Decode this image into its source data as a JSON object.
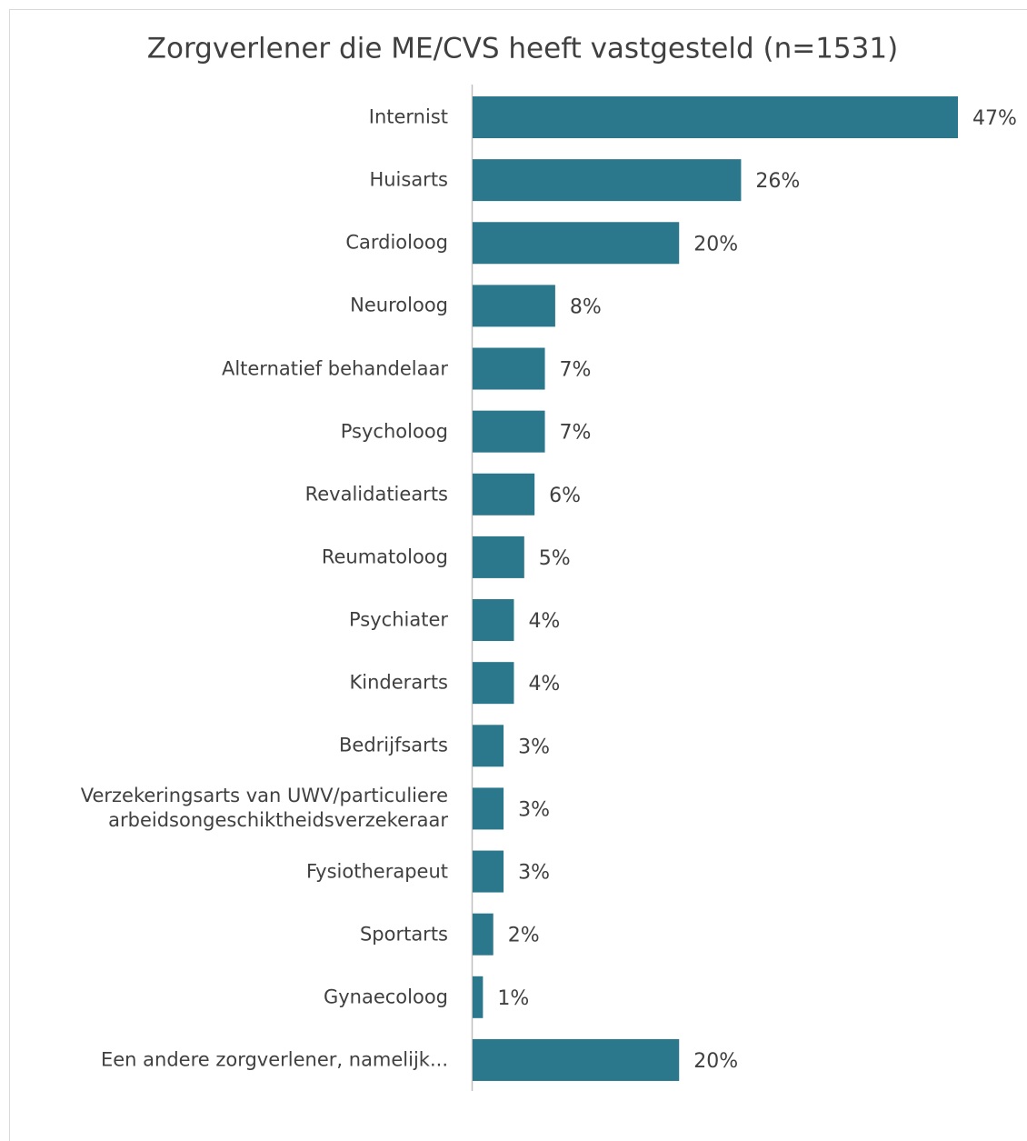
{
  "chart_data": {
    "type": "bar",
    "orientation": "horizontal",
    "title": "Zorgverlener die ME/CVS heeft vastgesteld (n=1531)",
    "categories": [
      "Internist",
      "Huisarts",
      "Cardioloog",
      "Neuroloog",
      "Alternatief behandelaar",
      "Psycholoog",
      "Revalidatiearts",
      "Reumatoloog",
      "Psychiater",
      "Kinderarts",
      "Bedrijfsarts",
      "Verzekeringsarts van UWV/particuliere\narbeidsongeschiktheidsverzekeraar",
      "Fysiotherapeut",
      "Sportarts",
      "Gynaecoloog",
      "Een andere zorgverlener, namelijk..."
    ],
    "values": [
      47,
      26,
      20,
      8,
      7,
      7,
      6,
      5,
      4,
      4,
      3,
      3,
      3,
      2,
      1,
      20
    ],
    "value_labels": [
      "47%",
      "26%",
      "20%",
      "8%",
      "7%",
      "7%",
      "6%",
      "5%",
      "4%",
      "4%",
      "3%",
      "3%",
      "3%",
      "2%",
      "1%",
      "20%"
    ],
    "color": "#2b778b"
  }
}
